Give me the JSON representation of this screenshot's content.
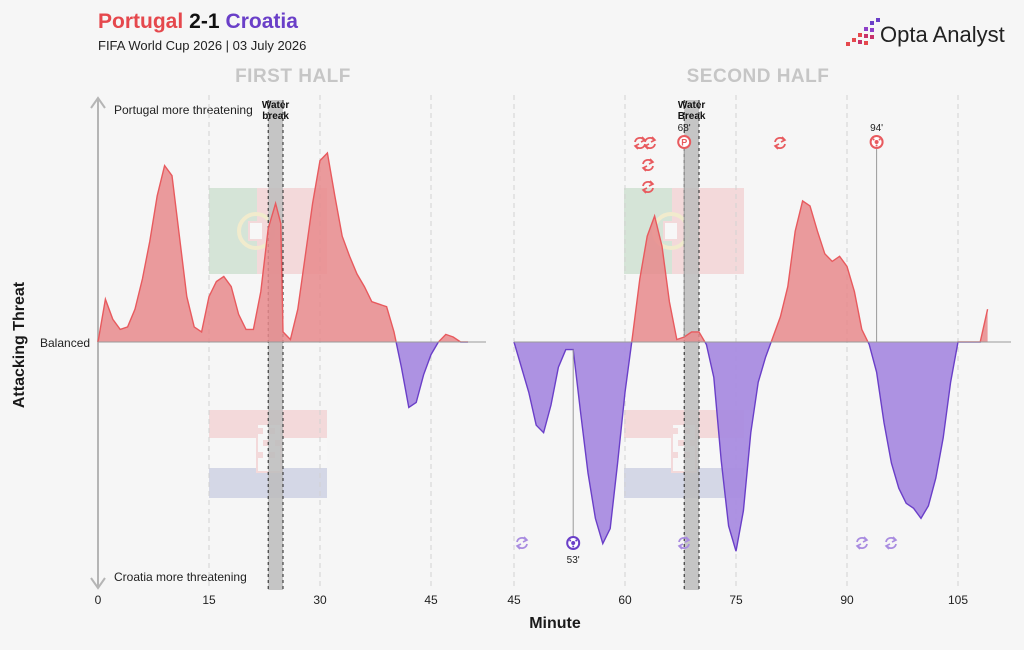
{
  "header": {
    "home_team": "Portugal",
    "score": "2-1",
    "away_team": "Croatia",
    "subtitle": "FIFA World Cup 2026 | 03 July 2026",
    "brand": "Opta Analyst"
  },
  "colors": {
    "home": "#e85a5e",
    "home_fill": "#e88a8c",
    "away": "#6a3fc8",
    "away_fill": "#a98ce0",
    "water_break": "#bcbcbc"
  },
  "labels": {
    "first_half": "FIRST HALF",
    "second_half": "SECOND HALF",
    "top_note": "Portugal more threatening",
    "bottom_note": "Croatia more threatening",
    "balanced": "Balanced",
    "y_axis": "Attacking Threat",
    "x_axis": "Minute",
    "water_break": "Water break",
    "water_break_2": "Water Break"
  },
  "chart_data": [
    {
      "type": "area",
      "title": "FIRST HALF",
      "xlabel": "Minute",
      "ylabel": "Attacking Threat",
      "xlim": [
        0,
        52
      ],
      "ylim": [
        -1,
        1
      ],
      "x_ticks": [
        0,
        15,
        30,
        45
      ],
      "water_break": [
        23,
        25
      ],
      "x": [
        0,
        1,
        2,
        3,
        4,
        5,
        6,
        7,
        8,
        9,
        10,
        11,
        12,
        13,
        14,
        15,
        16,
        17,
        18,
        19,
        20,
        21,
        22,
        23,
        24,
        24.7,
        25,
        26,
        27,
        28,
        29,
        30,
        31,
        32,
        33,
        34,
        35,
        36,
        37,
        38,
        39,
        40,
        41,
        42,
        43,
        44,
        45,
        46,
        47,
        48,
        49,
        50
      ],
      "threat": [
        0.0,
        0.17,
        0.09,
        0.05,
        0.06,
        0.13,
        0.25,
        0.4,
        0.58,
        0.7,
        0.66,
        0.42,
        0.18,
        0.06,
        0.04,
        0.18,
        0.24,
        0.26,
        0.22,
        0.11,
        0.05,
        0.05,
        0.2,
        0.45,
        0.55,
        0.47,
        0.04,
        0.01,
        0.13,
        0.34,
        0.55,
        0.72,
        0.75,
        0.58,
        0.42,
        0.34,
        0.27,
        0.22,
        0.16,
        0.15,
        0.14,
        0.04,
        -0.1,
        -0.26,
        -0.24,
        -0.13,
        -0.05,
        0.0,
        0.03,
        0.02,
        0.0,
        0.0
      ],
      "events": []
    },
    {
      "type": "area",
      "title": "SECOND HALF",
      "xlabel": "Minute",
      "ylabel": "Attacking Threat",
      "xlim": [
        45,
        113
      ],
      "ylim": [
        -1,
        1
      ],
      "x_ticks": [
        45,
        60,
        75,
        90,
        105
      ],
      "water_break": [
        68,
        70
      ],
      "x": [
        45,
        46,
        47,
        48,
        49,
        50,
        51,
        52,
        53,
        54,
        55,
        56,
        57,
        58,
        59,
        60,
        61,
        62,
        63,
        64,
        65,
        66,
        67,
        68,
        69,
        70,
        71,
        72,
        73,
        74,
        75,
        76,
        77,
        78,
        79,
        80,
        81,
        82,
        83,
        84,
        85,
        86,
        87,
        88,
        89,
        90,
        91,
        92,
        93,
        94,
        95,
        96,
        97,
        98,
        99,
        100,
        101,
        102,
        103,
        104,
        105,
        106,
        107,
        108,
        109
      ],
      "threat": [
        0.0,
        -0.1,
        -0.2,
        -0.33,
        -0.36,
        -0.25,
        -0.1,
        -0.03,
        -0.03,
        -0.28,
        -0.52,
        -0.7,
        -0.8,
        -0.74,
        -0.48,
        -0.2,
        0.02,
        0.25,
        0.42,
        0.5,
        0.38,
        0.16,
        0.01,
        0.02,
        0.04,
        0.04,
        -0.01,
        -0.14,
        -0.47,
        -0.73,
        -0.83,
        -0.67,
        -0.36,
        -0.16,
        -0.06,
        0.02,
        0.1,
        0.22,
        0.44,
        0.56,
        0.54,
        0.44,
        0.35,
        0.32,
        0.34,
        0.3,
        0.2,
        0.05,
        -0.01,
        -0.12,
        -0.32,
        -0.48,
        -0.58,
        -0.64,
        -0.66,
        -0.7,
        -0.65,
        -0.54,
        -0.38,
        -0.16,
        0.0,
        0.0,
        0.0,
        0.0,
        0.13
      ],
      "events": [
        {
          "minute": 53,
          "label": "53'",
          "team": "Croatia",
          "type": "goal"
        },
        {
          "minute": 68,
          "label": "68'",
          "team": "Portugal",
          "type": "penalty goal"
        },
        {
          "minute": 94,
          "label": "94'",
          "team": "Portugal",
          "type": "goal"
        }
      ]
    }
  ]
}
